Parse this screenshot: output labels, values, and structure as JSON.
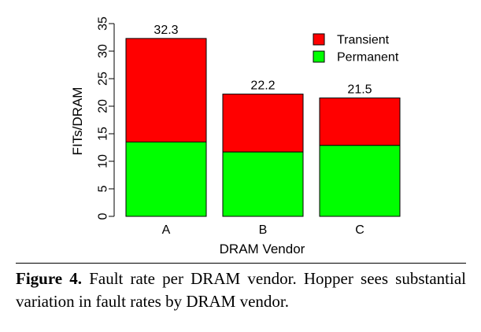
{
  "chart_data": {
    "type": "bar",
    "stacked": true,
    "categories": [
      "A",
      "B",
      "C"
    ],
    "series": [
      {
        "name": "Permanent",
        "values": [
          13.5,
          11.7,
          12.9
        ],
        "color": "#00ff00"
      },
      {
        "name": "Transient",
        "values": [
          18.8,
          10.5,
          8.6
        ],
        "color": "#ff0000"
      }
    ],
    "totals": [
      "32.3",
      "22.2",
      "21.5"
    ],
    "xlabel": "DRAM Vendor",
    "ylabel": "FITs/DRAM",
    "ylim": [
      0,
      35
    ],
    "yticks": [
      "0",
      "5",
      "10",
      "15",
      "20",
      "25",
      "30",
      "35"
    ],
    "legend_position": "top-right",
    "legend_order": [
      "Transient",
      "Permanent"
    ]
  },
  "caption": {
    "label": "Figure 4.",
    "text": "Fault rate per DRAM vendor. Hopper sees substantial variation in fault rates by DRAM vendor."
  }
}
